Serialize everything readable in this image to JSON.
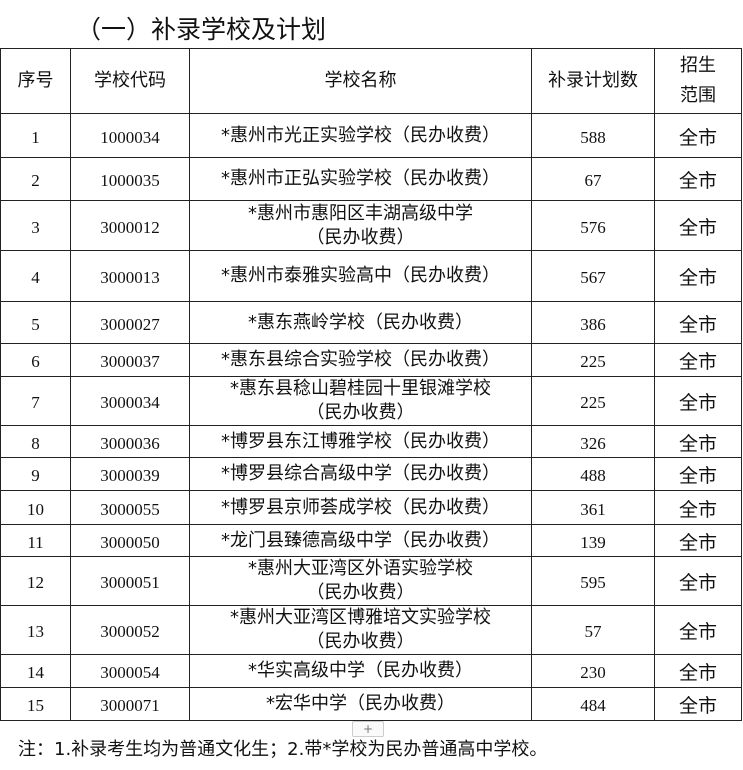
{
  "title": "（一）补录学校及计划",
  "headers": {
    "seq": "序号",
    "code": "学校代码",
    "name": "学校名称",
    "plan": "补录计划数",
    "scope": "招生\n范围"
  },
  "rows": [
    {
      "seq": "1",
      "code": "1000034",
      "name": "*惠州市光正实验学校（民办收费）",
      "plan": "588",
      "scope": "全市"
    },
    {
      "seq": "2",
      "code": "1000035",
      "name": "*惠州市正弘实验学校（民办收费）",
      "plan": "67",
      "scope": "全市"
    },
    {
      "seq": "3",
      "code": "3000012",
      "name": "*惠州市惠阳区丰湖高级中学\n（民办收费）",
      "plan": "576",
      "scope": "全市"
    },
    {
      "seq": "4",
      "code": "3000013",
      "name": "*惠州市泰雅实验高中（民办收费）",
      "plan": "567",
      "scope": "全市"
    },
    {
      "seq": "5",
      "code": "3000027",
      "name": "*惠东燕岭学校（民办收费）",
      "plan": "386",
      "scope": "全市"
    },
    {
      "seq": "6",
      "code": "3000037",
      "name": "*惠东县综合实验学校（民办收费）",
      "plan": "225",
      "scope": "全市"
    },
    {
      "seq": "7",
      "code": "3000034",
      "name": "*惠东县稔山碧桂园十里银滩学校\n（民办收费）",
      "plan": "225",
      "scope": "全市"
    },
    {
      "seq": "8",
      "code": "3000036",
      "name": "*博罗县东江博雅学校（民办收费）",
      "plan": "326",
      "scope": "全市"
    },
    {
      "seq": "9",
      "code": "3000039",
      "name": "*博罗县综合高级中学（民办收费）",
      "plan": "488",
      "scope": "全市"
    },
    {
      "seq": "10",
      "code": "3000055",
      "name": "*博罗县京师荟成学校（民办收费）",
      "plan": "361",
      "scope": "全市"
    },
    {
      "seq": "11",
      "code": "3000050",
      "name": "*龙门县臻德高级中学（民办收费）",
      "plan": "139",
      "scope": "全市"
    },
    {
      "seq": "12",
      "code": "3000051",
      "name": "*惠州大亚湾区外语实验学校\n（民办收费）",
      "plan": "595",
      "scope": "全市"
    },
    {
      "seq": "13",
      "code": "3000052",
      "name": "*惠州大亚湾区博雅培文实验学校\n（民办收费）",
      "plan": "57",
      "scope": "全市"
    },
    {
      "seq": "14",
      "code": "3000054",
      "name": "*华实高级中学（民办收费）",
      "plan": "230",
      "scope": "全市"
    },
    {
      "seq": "15",
      "code": "3000071",
      "name": "*宏华中学（民办收费）",
      "plan": "484",
      "scope": "全市"
    }
  ],
  "add_row_label": "+",
  "note": "注：1.补录考生均为普通文化生；2.带*学校为民办普通高中学校。"
}
